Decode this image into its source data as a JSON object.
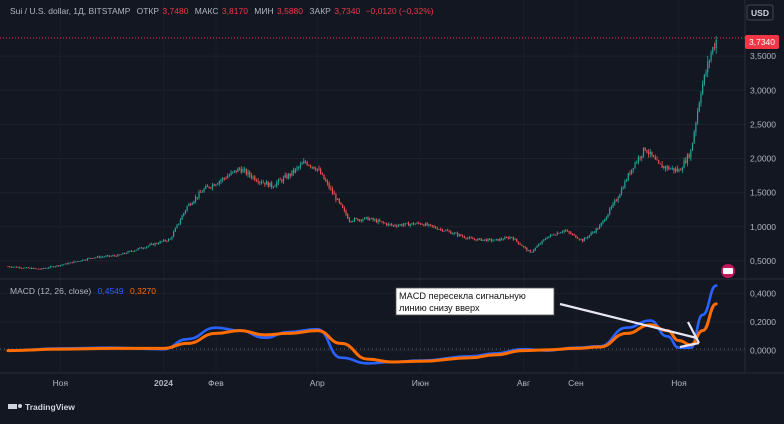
{
  "header": {
    "symbol": "Sui / U.S. dollar, 1Д, BITSTAMP",
    "open_label": "ОТКР",
    "open_value": "3,7480",
    "high_label": "МАКС",
    "high_value": "3,8170",
    "low_label": "МИН",
    "low_value": "3,5880",
    "close_label": "ЗАКР",
    "close_value": "3,7340",
    "change_value": "−0,0120 (−0,32%)"
  },
  "currency_badge": "USD",
  "last_price_tag": "3,7340",
  "macd_header": {
    "label": "MACD (12, 26, close)",
    "macd_value": "0,4549",
    "signal_value": "0,3270"
  },
  "annotation": {
    "line1": "MACD пересекла сигнальную",
    "line2": "линию снизу вверх"
  },
  "brand": "TradingView",
  "colors": {
    "background": "#131722",
    "candle_up": "#26a69a",
    "candle_down": "#ef5350",
    "macd_line": "#2962ff",
    "signal_line": "#ff6d00",
    "text": "#b2b5be",
    "price_tag": "#f23645"
  },
  "chart_data": [
    {
      "type": "candlestick",
      "title": "Sui / U.S. dollar, 1Д, BITSTAMP",
      "y_axis": {
        "side": "right",
        "ticks": [
          "0,5000",
          "1,0000",
          "1,5000",
          "2,0000",
          "2,5000",
          "3,0000",
          "3,5000"
        ],
        "tick_values": [
          0.5,
          1.0,
          1.5,
          2.0,
          2.5,
          3.0,
          3.5
        ],
        "range": [
          0.25,
          4.0
        ]
      },
      "x_axis": {
        "ticks": [
          "Ноя",
          "2024",
          "Фев",
          "Апр",
          "Июн",
          "Авг",
          "Сен",
          "Ноя"
        ],
        "tick_dates": [
          "2023-11-01",
          "2024-01-01",
          "2024-02-01",
          "2024-04-01",
          "2024-06-01",
          "2024-08-01",
          "2024-09-01",
          "2024-11-01"
        ],
        "range": [
          "2023-10-01",
          "2024-11-30"
        ]
      },
      "close_path": [
        [
          "2023-10-01",
          0.42
        ],
        [
          "2023-10-20",
          0.38
        ],
        [
          "2023-11-05",
          0.46
        ],
        [
          "2023-11-20",
          0.55
        ],
        [
          "2023-12-05",
          0.58
        ],
        [
          "2023-12-20",
          0.7
        ],
        [
          "2024-01-05",
          0.82
        ],
        [
          "2024-01-15",
          1.3
        ],
        [
          "2024-01-25",
          1.55
        ],
        [
          "2024-02-05",
          1.7
        ],
        [
          "2024-02-15",
          1.85
        ],
        [
          "2024-02-25",
          1.7
        ],
        [
          "2024-03-05",
          1.6
        ],
        [
          "2024-03-15",
          1.75
        ],
        [
          "2024-03-25",
          1.95
        ],
        [
          "2024-04-01",
          1.85
        ],
        [
          "2024-04-10",
          1.5
        ],
        [
          "2024-04-20",
          1.1
        ],
        [
          "2024-05-01",
          1.12
        ],
        [
          "2024-05-15",
          1.02
        ],
        [
          "2024-06-01",
          1.05
        ],
        [
          "2024-06-15",
          0.95
        ],
        [
          "2024-07-01",
          0.82
        ],
        [
          "2024-07-15",
          0.8
        ],
        [
          "2024-07-25",
          0.85
        ],
        [
          "2024-08-05",
          0.62
        ],
        [
          "2024-08-15",
          0.85
        ],
        [
          "2024-08-25",
          0.95
        ],
        [
          "2024-09-05",
          0.8
        ],
        [
          "2024-09-15",
          1.0
        ],
        [
          "2024-09-25",
          1.4
        ],
        [
          "2024-10-05",
          1.9
        ],
        [
          "2024-10-12",
          2.15
        ],
        [
          "2024-10-20",
          1.9
        ],
        [
          "2024-11-01",
          1.82
        ],
        [
          "2024-11-08",
          2.1
        ],
        [
          "2024-11-14",
          3.0
        ],
        [
          "2024-11-20",
          3.55
        ],
        [
          "2024-11-23",
          3.734
        ]
      ]
    },
    {
      "type": "line",
      "title": "MACD (12, 26, close)",
      "y_axis": {
        "side": "right",
        "ticks": [
          "0,0000",
          "0,2000",
          "0,4000"
        ],
        "tick_values": [
          0.0,
          0.2,
          0.4
        ],
        "range": [
          -0.15,
          0.48
        ]
      },
      "series": [
        {
          "name": "MACD",
          "color": "#2962ff",
          "points": [
            [
              "2023-10-01",
              0.0
            ],
            [
              "2023-11-01",
              0.015
            ],
            [
              "2023-12-01",
              0.02
            ],
            [
              "2024-01-01",
              0.01
            ],
            [
              "2024-01-15",
              0.08
            ],
            [
              "2024-02-01",
              0.16
            ],
            [
              "2024-02-15",
              0.14
            ],
            [
              "2024-03-01",
              0.09
            ],
            [
              "2024-03-15",
              0.13
            ],
            [
              "2024-04-01",
              0.15
            ],
            [
              "2024-04-15",
              -0.05
            ],
            [
              "2024-05-01",
              -0.09
            ],
            [
              "2024-05-15",
              -0.08
            ],
            [
              "2024-06-01",
              -0.07
            ],
            [
              "2024-07-01",
              -0.04
            ],
            [
              "2024-07-15",
              -0.02
            ],
            [
              "2024-08-01",
              0.01
            ],
            [
              "2024-08-15",
              0.0
            ],
            [
              "2024-09-01",
              0.02
            ],
            [
              "2024-09-15",
              0.03
            ],
            [
              "2024-10-01",
              0.16
            ],
            [
              "2024-10-15",
              0.21
            ],
            [
              "2024-10-25",
              0.1
            ],
            [
              "2024-11-01",
              0.02
            ],
            [
              "2024-11-08",
              0.02
            ],
            [
              "2024-11-15",
              0.25
            ],
            [
              "2024-11-23",
              0.4549
            ]
          ]
        },
        {
          "name": "Signal",
          "color": "#ff6d00",
          "points": [
            [
              "2023-10-01",
              0.0
            ],
            [
              "2023-11-01",
              0.01
            ],
            [
              "2023-12-01",
              0.015
            ],
            [
              "2024-01-01",
              0.015
            ],
            [
              "2024-01-15",
              0.05
            ],
            [
              "2024-02-01",
              0.12
            ],
            [
              "2024-02-15",
              0.14
            ],
            [
              "2024-03-01",
              0.11
            ],
            [
              "2024-03-15",
              0.12
            ],
            [
              "2024-04-01",
              0.14
            ],
            [
              "2024-04-15",
              0.05
            ],
            [
              "2024-05-01",
              -0.06
            ],
            [
              "2024-05-15",
              -0.08
            ],
            [
              "2024-06-01",
              -0.075
            ],
            [
              "2024-07-01",
              -0.05
            ],
            [
              "2024-07-15",
              -0.03
            ],
            [
              "2024-08-01",
              0.0
            ],
            [
              "2024-08-15",
              0.005
            ],
            [
              "2024-09-01",
              0.015
            ],
            [
              "2024-09-15",
              0.025
            ],
            [
              "2024-10-01",
              0.12
            ],
            [
              "2024-10-15",
              0.18
            ],
            [
              "2024-10-25",
              0.14
            ],
            [
              "2024-11-01",
              0.07
            ],
            [
              "2024-11-08",
              0.04
            ],
            [
              "2024-11-15",
              0.14
            ],
            [
              "2024-11-23",
              0.327
            ]
          ]
        }
      ]
    }
  ]
}
